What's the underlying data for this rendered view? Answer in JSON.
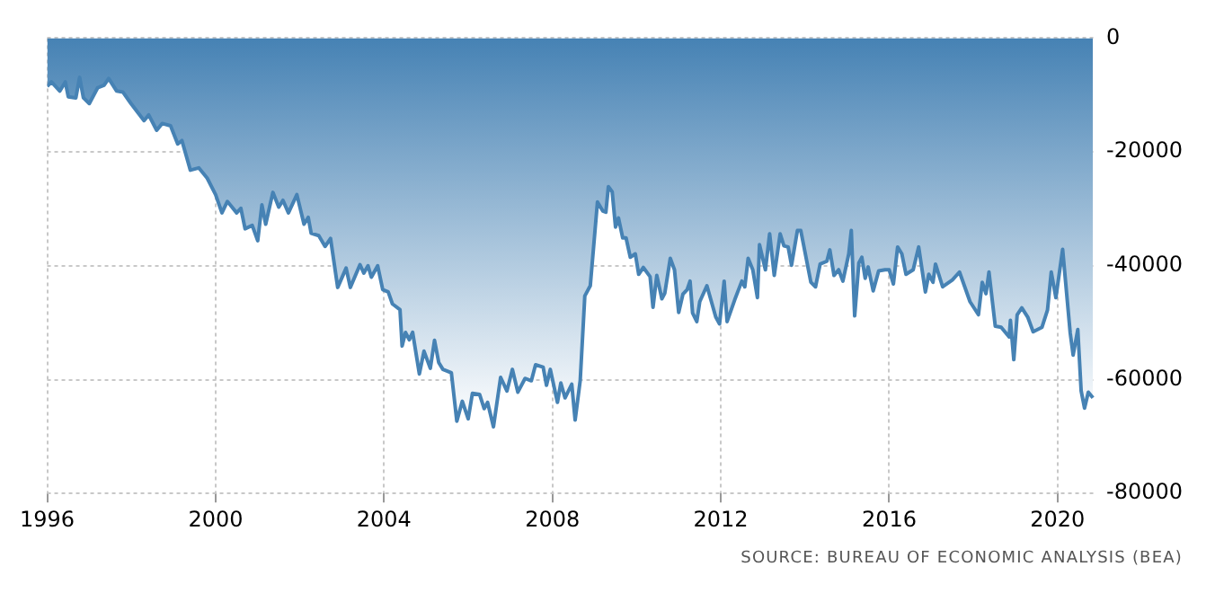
{
  "chart_data": {
    "type": "area",
    "annotations": [
      "SOURCE: BUREAU OF ECONOMIC ANALYSIS (BEA)"
    ],
    "series": [
      {
        "color": "#4682b4",
        "x": [
          1996.0,
          1996.1,
          1996.3,
          1996.43,
          1996.5,
          1996.68,
          1996.77,
          1996.86,
          1997.0,
          1997.2,
          1997.35,
          1997.46,
          1997.65,
          1997.8,
          1997.99,
          1998.3,
          1998.41,
          1998.6,
          1998.73,
          1998.93,
          1999.1,
          1999.2,
          1999.4,
          1999.6,
          1999.8,
          2000.0,
          2000.15,
          2000.28,
          2000.5,
          2000.6,
          2000.7,
          2000.87,
          2001.0,
          2001.1,
          2001.19,
          2001.36,
          2001.5,
          2001.6,
          2001.73,
          2001.93,
          2002.1,
          2002.2,
          2002.27,
          2002.45,
          2002.6,
          2002.73,
          2002.9,
          2003.1,
          2003.2,
          2003.43,
          2003.52,
          2003.62,
          2003.7,
          2003.85,
          2003.97,
          2004.1,
          2004.2,
          2004.38,
          2004.43,
          2004.51,
          2004.6,
          2004.68,
          2004.84,
          2004.95,
          2005.1,
          2005.2,
          2005.3,
          2005.4,
          2005.6,
          2005.73,
          2005.86,
          2006.0,
          2006.1,
          2006.27,
          2006.38,
          2006.46,
          2006.6,
          2006.77,
          2006.92,
          2007.05,
          2007.18,
          2007.35,
          2007.5,
          2007.6,
          2007.78,
          2007.86,
          2007.95,
          2008.12,
          2008.2,
          2008.3,
          2008.46,
          2008.54,
          2008.66,
          2008.77,
          2008.9,
          2009.07,
          2009.2,
          2009.27,
          2009.33,
          2009.42,
          2009.5,
          2009.57,
          2009.67,
          2009.75,
          2009.85,
          2009.97,
          2010.05,
          2010.16,
          2010.32,
          2010.39,
          2010.48,
          2010.6,
          2010.67,
          2010.8,
          2010.9,
          2011.0,
          2011.1,
          2011.2,
          2011.27,
          2011.33,
          2011.43,
          2011.5,
          2011.67,
          2011.88,
          2011.97,
          2012.08,
          2012.15,
          2012.33,
          2012.5,
          2012.57,
          2012.65,
          2012.76,
          2012.87,
          2012.92,
          2013.06,
          2013.16,
          2013.27,
          2013.41,
          2013.5,
          2013.6,
          2013.68,
          2013.82,
          2013.9,
          2014.14,
          2014.25,
          2014.36,
          2014.52,
          2014.59,
          2014.69,
          2014.8,
          2014.9,
          2015.04,
          2015.1,
          2015.18,
          2015.28,
          2015.35,
          2015.43,
          2015.5,
          2015.62,
          2015.75,
          2015.9,
          2016.0,
          2016.1,
          2016.2,
          2016.3,
          2016.4,
          2016.57,
          2016.7,
          2016.86,
          2016.94,
          2017.04,
          2017.1,
          2017.27,
          2017.5,
          2017.67,
          2017.92,
          2018.12,
          2018.21,
          2018.3,
          2018.37,
          2018.52,
          2018.66,
          2018.85,
          2018.88,
          2018.96,
          2019.04,
          2019.15,
          2019.29,
          2019.42,
          2019.63,
          2019.76,
          2019.85,
          2019.96,
          2020.12,
          2020.3,
          2020.37,
          2020.48,
          2020.56,
          2020.64,
          2020.73,
          2020.84
        ],
        "values": [
          -8500,
          -7700,
          -9300,
          -7700,
          -10300,
          -10500,
          -6900,
          -10500,
          -11500,
          -8700,
          -8300,
          -7100,
          -9300,
          -9500,
          -11500,
          -14500,
          -13500,
          -16200,
          -15000,
          -15400,
          -18600,
          -18000,
          -23200,
          -22800,
          -24600,
          -27500,
          -30700,
          -28700,
          -30700,
          -29900,
          -33500,
          -32900,
          -35600,
          -29300,
          -32700,
          -27100,
          -29700,
          -28500,
          -30700,
          -27500,
          -32700,
          -31500,
          -34300,
          -34700,
          -36600,
          -35200,
          -43800,
          -40400,
          -43800,
          -39800,
          -41300,
          -40000,
          -42000,
          -40000,
          -44200,
          -44600,
          -46700,
          -47700,
          -54100,
          -51700,
          -53000,
          -51700,
          -59000,
          -55000,
          -58000,
          -53100,
          -57000,
          -58200,
          -58800,
          -67300,
          -63800,
          -66900,
          -62400,
          -62600,
          -65100,
          -64000,
          -68300,
          -59600,
          -62000,
          -58200,
          -62200,
          -59800,
          -60200,
          -57400,
          -57800,
          -61000,
          -58200,
          -64000,
          -60600,
          -63200,
          -60800,
          -67100,
          -60200,
          -45300,
          -43500,
          -28800,
          -30400,
          -30600,
          -26100,
          -27000,
          -33200,
          -31600,
          -35100,
          -35100,
          -38500,
          -37900,
          -41500,
          -40300,
          -41900,
          -47300,
          -41700,
          -45800,
          -44800,
          -38700,
          -40700,
          -48200,
          -45000,
          -44200,
          -42700,
          -48300,
          -49800,
          -46300,
          -43500,
          -49000,
          -50200,
          -42700,
          -49800,
          -46000,
          -42700,
          -43700,
          -38700,
          -40700,
          -45600,
          -36300,
          -40700,
          -34400,
          -41700,
          -34400,
          -36500,
          -36700,
          -39900,
          -33800,
          -33800,
          -42900,
          -43700,
          -39700,
          -39200,
          -37200,
          -41700,
          -40700,
          -42700,
          -37900,
          -33800,
          -48800,
          -39500,
          -38500,
          -42200,
          -40200,
          -44400,
          -40900,
          -40700,
          -40700,
          -43200,
          -36700,
          -37900,
          -41500,
          -40700,
          -36700,
          -44600,
          -41500,
          -42900,
          -39700,
          -43700,
          -42500,
          -41100,
          -46300,
          -48600,
          -42900,
          -44900,
          -41100,
          -50600,
          -50800,
          -52500,
          -49600,
          -56500,
          -48600,
          -47400,
          -49000,
          -51600,
          -50800,
          -47800,
          -41100,
          -45600,
          -37100,
          -51800,
          -55700,
          -51200,
          -62000,
          -65000,
          -62200,
          -63200
        ]
      }
    ],
    "xlim": [
      1996,
      2020.9
    ],
    "xticks": [
      1996,
      2000,
      2004,
      2008,
      2012,
      2016,
      2020
    ],
    "ylim": [
      -80000,
      0
    ],
    "yticks": [
      -80000,
      -60000,
      -40000,
      -20000,
      0
    ],
    "grid": true,
    "legend": false,
    "marker": "none",
    "line_style": "solid"
  }
}
